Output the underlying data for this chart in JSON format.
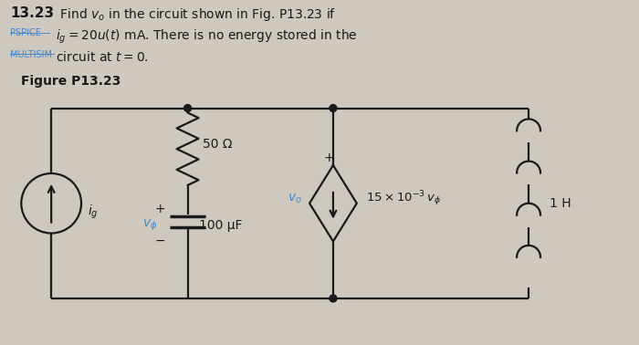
{
  "bg_color": "#cfc8be",
  "line_color": "#1a1a1a",
  "title_bold": "13.23",
  "title_text1": " Find $v_o$ in the circuit shown in Fig. P13.23 if",
  "title_text2": "$i_g = 20u(t)$ mA. There is no energy stored in the",
  "title_text3": "circuit at $t = 0$.",
  "pspice_label": "PSPICE",
  "multisim_label": "MULTISIM",
  "figure_label": "Figure P13.23",
  "r_label": "50 Ω",
  "c_label": "100 μF",
  "l_label": "1 H",
  "cs_label": "$15 \\times 10^{-3} v_\\phi$",
  "ig_label": "$i_g$",
  "vo_label": "$v_o$",
  "vphi_label": "$v_\\phi$",
  "blue_color": "#4488cc"
}
